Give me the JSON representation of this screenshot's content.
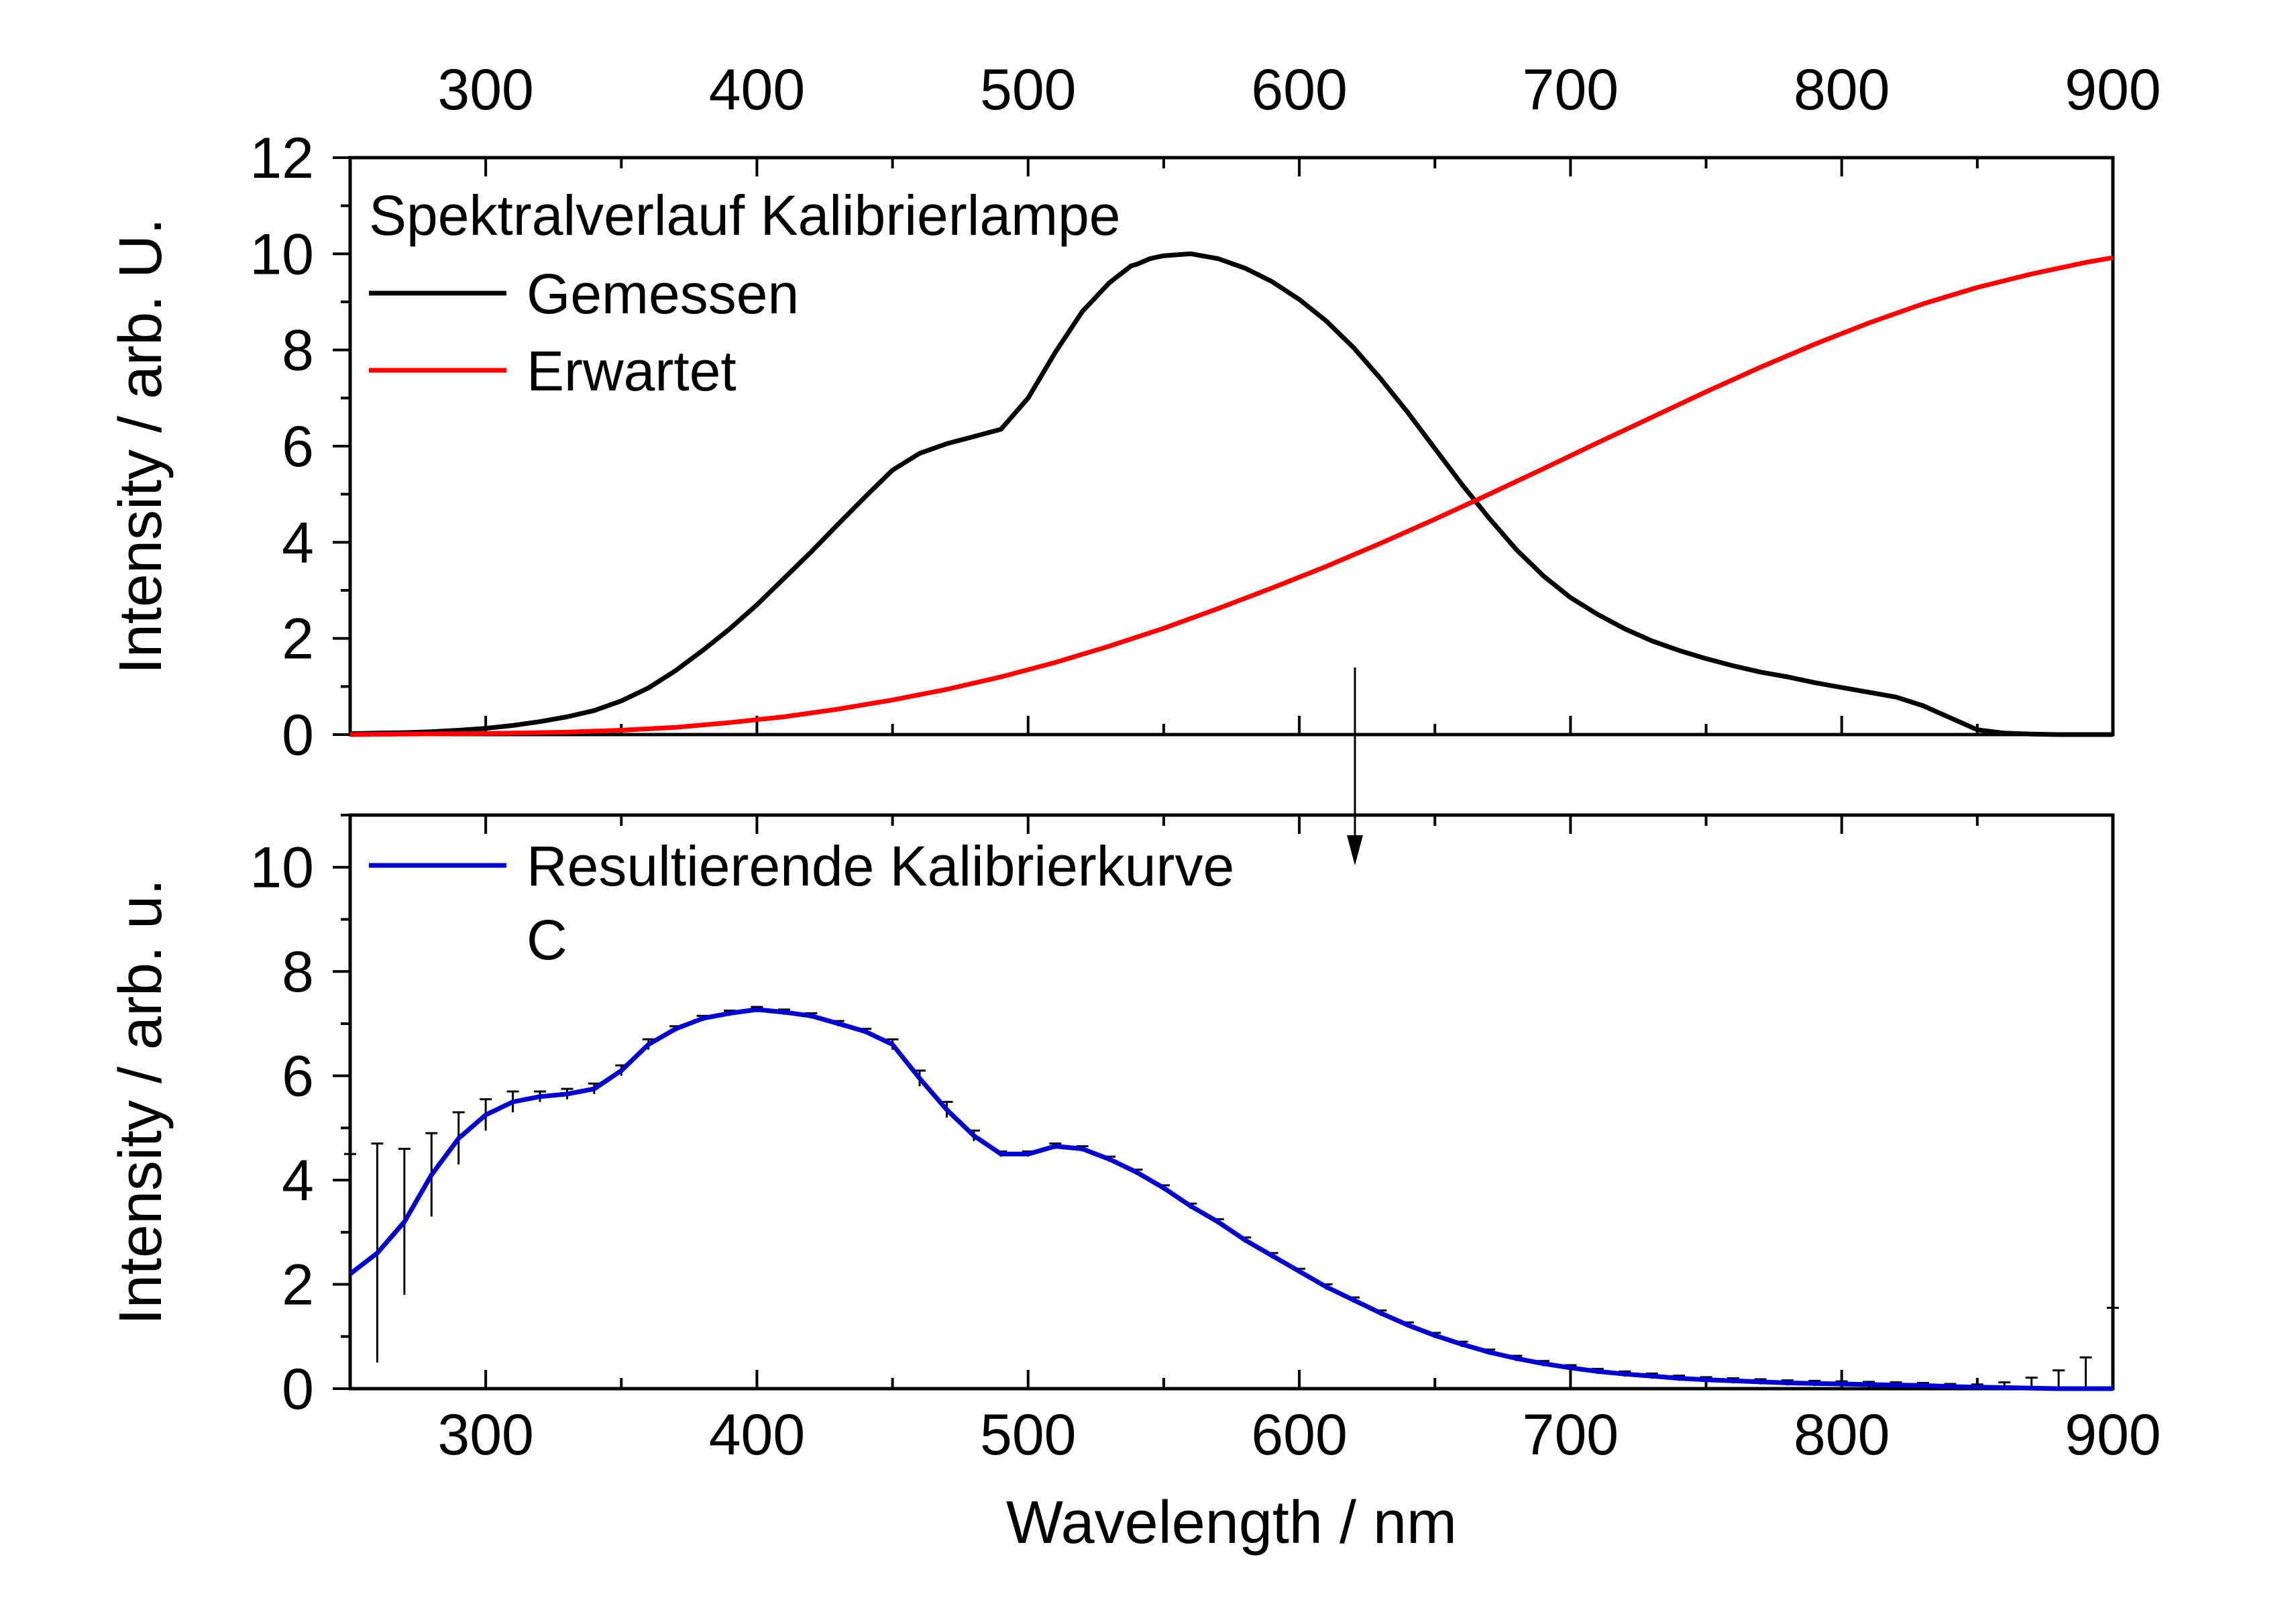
{
  "chart_data": [
    {
      "id": "top",
      "type": "line",
      "xlim": [
        250,
        900
      ],
      "ylim": [
        0,
        12
      ],
      "xticks": [
        300,
        400,
        500,
        600,
        700,
        800,
        900
      ],
      "yticks": [
        0,
        2,
        4,
        6,
        8,
        10,
        12
      ],
      "x_tick_labels_position": "top",
      "ylabel": "Intensity  /  arb. U.",
      "legend_title": "Spektralverlauf Kalibrierlampe",
      "legend_position": "top-left",
      "series": [
        {
          "name": "Gemessen",
          "color": "#000000",
          "x": [
            250,
            260,
            270,
            280,
            290,
            300,
            310,
            320,
            330,
            340,
            350,
            360,
            370,
            380,
            390,
            400,
            410,
            420,
            430,
            440,
            450,
            460,
            470,
            480,
            490,
            500,
            510,
            520,
            530,
            538,
            540,
            545,
            550,
            560,
            570,
            580,
            590,
            600,
            610,
            620,
            630,
            640,
            650,
            660,
            670,
            680,
            690,
            700,
            710,
            720,
            730,
            740,
            750,
            760,
            770,
            780,
            790,
            800,
            810,
            820,
            830,
            840,
            850,
            860,
            870,
            880,
            890,
            900
          ],
          "y": [
            0.02,
            0.03,
            0.04,
            0.06,
            0.09,
            0.13,
            0.19,
            0.27,
            0.37,
            0.5,
            0.7,
            0.97,
            1.33,
            1.75,
            2.2,
            2.7,
            3.25,
            3.8,
            4.38,
            4.95,
            5.5,
            5.85,
            6.05,
            6.2,
            6.35,
            7.0,
            7.95,
            8.8,
            9.4,
            9.75,
            9.78,
            9.9,
            9.96,
            10.0,
            9.9,
            9.7,
            9.42,
            9.05,
            8.6,
            8.05,
            7.4,
            6.7,
            5.95,
            5.2,
            4.5,
            3.85,
            3.3,
            2.85,
            2.5,
            2.2,
            1.95,
            1.75,
            1.58,
            1.43,
            1.3,
            1.2,
            1.08,
            0.98,
            0.88,
            0.78,
            0.6,
            0.35,
            0.1,
            0.03,
            0.01,
            0.0,
            0.0,
            0.0
          ]
        },
        {
          "name": "Erwartet",
          "color": "#ff0000",
          "x": [
            250,
            270,
            290,
            310,
            330,
            350,
            370,
            390,
            410,
            430,
            450,
            470,
            490,
            510,
            530,
            550,
            570,
            590,
            610,
            630,
            650,
            670,
            690,
            710,
            730,
            750,
            770,
            790,
            810,
            830,
            850,
            870,
            890,
            900
          ],
          "y": [
            0.0,
            0.01,
            0.02,
            0.03,
            0.05,
            0.09,
            0.15,
            0.25,
            0.37,
            0.53,
            0.72,
            0.94,
            1.2,
            1.5,
            1.84,
            2.21,
            2.62,
            3.05,
            3.5,
            3.98,
            4.48,
            5.0,
            5.53,
            6.07,
            6.6,
            7.13,
            7.64,
            8.12,
            8.56,
            8.96,
            9.3,
            9.58,
            9.82,
            9.92
          ]
        }
      ]
    },
    {
      "id": "bottom",
      "type": "line",
      "xlim": [
        250,
        900
      ],
      "ylim": [
        0,
        11
      ],
      "xticks": [
        300,
        400,
        500,
        600,
        700,
        800,
        900
      ],
      "yticks": [
        0,
        2,
        4,
        6,
        8,
        10
      ],
      "x_tick_labels_position": "bottom",
      "xlabel": "Wavelength  /  nm",
      "ylabel": "Intensity  /  arb. u.",
      "legend_position": "top-left",
      "has_error_bars": true,
      "series": [
        {
          "name": "Resultierende Kalibrierkurve",
          "name_line2": "C",
          "color": "#0000cc",
          "x": [
            250,
            260,
            270,
            280,
            290,
            300,
            310,
            320,
            330,
            340,
            350,
            360,
            370,
            380,
            390,
            400,
            410,
            420,
            430,
            440,
            450,
            460,
            470,
            480,
            490,
            500,
            510,
            520,
            530,
            540,
            550,
            560,
            570,
            580,
            590,
            600,
            610,
            620,
            630,
            640,
            650,
            660,
            670,
            680,
            690,
            700,
            710,
            720,
            730,
            740,
            750,
            760,
            770,
            780,
            790,
            800,
            810,
            820,
            830,
            840,
            850,
            860,
            870,
            880,
            890,
            900
          ],
          "y": [
            2.2,
            2.6,
            3.2,
            4.1,
            4.8,
            5.25,
            5.5,
            5.6,
            5.65,
            5.75,
            6.1,
            6.6,
            6.9,
            7.1,
            7.2,
            7.27,
            7.22,
            7.15,
            7.0,
            6.85,
            6.6,
            5.95,
            5.35,
            4.85,
            4.5,
            4.5,
            4.65,
            4.6,
            4.4,
            4.15,
            3.85,
            3.5,
            3.2,
            2.85,
            2.55,
            2.25,
            1.95,
            1.7,
            1.45,
            1.22,
            1.02,
            0.85,
            0.7,
            0.58,
            0.48,
            0.4,
            0.33,
            0.28,
            0.24,
            0.2,
            0.17,
            0.15,
            0.13,
            0.11,
            0.1,
            0.09,
            0.08,
            0.07,
            0.06,
            0.04,
            0.03,
            0.02,
            0.01,
            0.0,
            0.0,
            0.0
          ],
          "err_plus": [
            2.3,
            2.1,
            1.4,
            0.8,
            0.5,
            0.3,
            0.2,
            0.1,
            0.1,
            0.1,
            0.1,
            0.1,
            0.05,
            0.05,
            0.05,
            0.05,
            0.05,
            0.05,
            0.05,
            0.05,
            0.1,
            0.15,
            0.15,
            0.1,
            0.05,
            0.05,
            0.05,
            0.05,
            0.05,
            0.05,
            0.05,
            0.05,
            0.05,
            0.05,
            0.05,
            0.05,
            0.05,
            0.05,
            0.05,
            0.05,
            0.05,
            0.05,
            0.05,
            0.05,
            0.05,
            0.05,
            0.05,
            0.05,
            0.05,
            0.05,
            0.05,
            0.05,
            0.05,
            0.05,
            0.05,
            0.05,
            0.05,
            0.05,
            0.05,
            0.05,
            0.05,
            0.1,
            0.2,
            0.35,
            0.6,
            1.55
          ],
          "err_minus": [
            2.2,
            2.1,
            1.4,
            0.8,
            0.5,
            0.3,
            0.2,
            0.1,
            0.1,
            0.1,
            0.1,
            0.1,
            0.05,
            0.05,
            0.05,
            0.05,
            0.05,
            0.05,
            0.05,
            0.05,
            0.1,
            0.15,
            0.15,
            0.1,
            0.05,
            0.05,
            0.05,
            0.05,
            0.05,
            0.05,
            0.05,
            0.05,
            0.05,
            0.05,
            0.05,
            0.05,
            0.05,
            0.05,
            0.05,
            0.05,
            0.05,
            0.05,
            0.05,
            0.05,
            0.05,
            0.05,
            0.05,
            0.05,
            0.05,
            0.05,
            0.05,
            0.05,
            0.05,
            0.05,
            0.05,
            0.05,
            0.05,
            0.05,
            0.05,
            0.04,
            0.03,
            0.02,
            0.01,
            0.0,
            0.0,
            0.0
          ]
        }
      ]
    }
  ]
}
